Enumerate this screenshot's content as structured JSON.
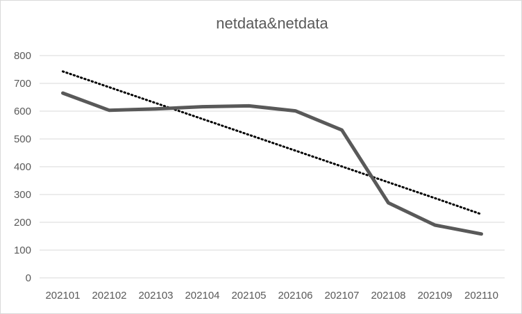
{
  "chart_data": {
    "type": "line",
    "title": "netdata&netdata",
    "xlabel": "",
    "ylabel": "",
    "categories": [
      "202101",
      "202102",
      "202103",
      "202104",
      "202105",
      "202106",
      "202107",
      "202108",
      "202109",
      "202110"
    ],
    "series": [
      {
        "values": [
          665,
          603,
          608,
          616,
          619,
          601,
          532,
          270,
          190,
          158
        ],
        "color": "#595959",
        "style": "solid"
      }
    ],
    "trendline": {
      "type": "linear",
      "values": [
        743,
        686,
        629,
        572,
        515,
        458,
        401,
        344,
        287,
        229
      ],
      "color": "#000000",
      "style": "dotted"
    },
    "ylim": [
      0,
      800
    ],
    "yticks": [
      0,
      100,
      200,
      300,
      400,
      500,
      600,
      700,
      800
    ],
    "grid": true,
    "legend": "none"
  }
}
